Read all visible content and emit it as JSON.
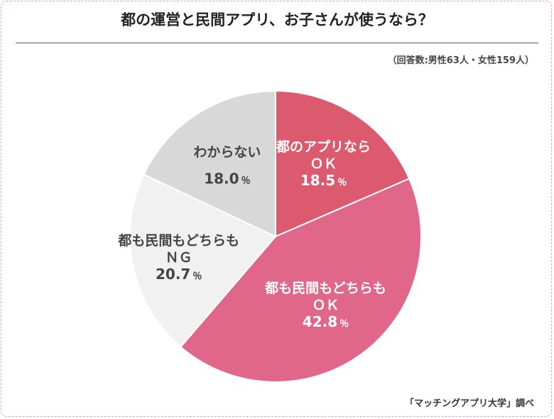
{
  "chart_data": {
    "type": "pie",
    "title": "都の運営と民間アプリ、お子さんが使うなら？",
    "note": "（回答数:男性63人・女性159人）",
    "source": "「マッチングアプリ大学」調べ",
    "start_angle_deg": 0,
    "direction": "clockwise",
    "slices": [
      {
        "label_lines": [
          "都のアプリなら",
          "ＯＫ"
        ],
        "value": 18.5,
        "value_text": "18.5",
        "unit": "％",
        "color": "#dc5a6e",
        "text_color": "#ffffff"
      },
      {
        "label_lines": [
          "都も民間もどちらも",
          "ＯＫ"
        ],
        "value": 42.8,
        "value_text": "42.8",
        "unit": "％",
        "color": "#e0668a",
        "text_color": "#ffffff"
      },
      {
        "label_lines": [
          "都も民間もどちらも",
          "ＮＧ"
        ],
        "value": 20.7,
        "value_text": "20.7",
        "unit": "％",
        "color": "#f1f1f1",
        "text_color": "#444444"
      },
      {
        "label_lines": [
          "わからない"
        ],
        "value": 18.0,
        "value_text": "18.0",
        "unit": "％",
        "color": "#d8d8d8",
        "text_color": "#444444"
      }
    ]
  }
}
